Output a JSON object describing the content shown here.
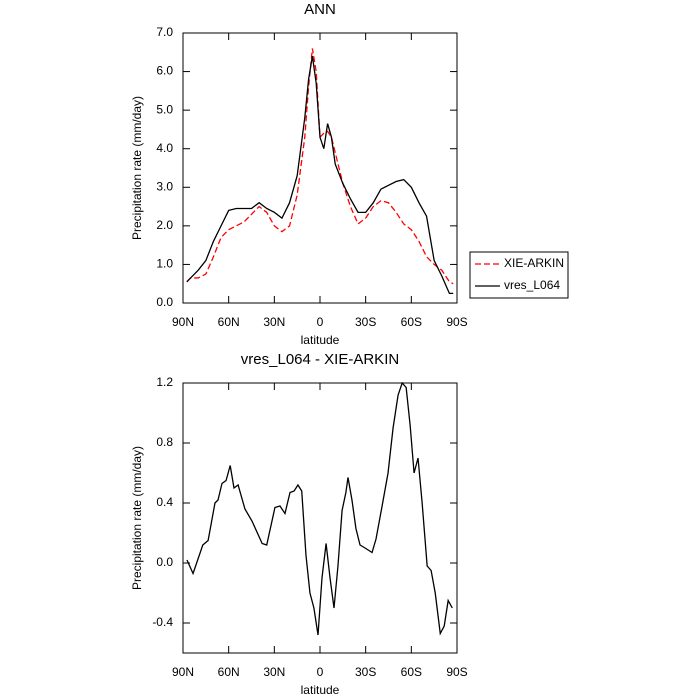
{
  "chart_data": [
    {
      "type": "line",
      "title": "ANN",
      "xlabel": "latitude",
      "ylabel": "Precipitation rate (mm/day)",
      "x": [
        87.5,
        85,
        80,
        75,
        70,
        65,
        60,
        55,
        50,
        45,
        40,
        35,
        30,
        25,
        20,
        15,
        10,
        7.5,
        5,
        2.5,
        0,
        -2.5,
        -5,
        -7.5,
        -10,
        -15,
        -20,
        -25,
        -30,
        -35,
        -40,
        -45,
        -50,
        -55,
        -60,
        -65,
        -70,
        -75,
        -80,
        -85,
        -87.5
      ],
      "series": [
        {
          "name": "XIE-ARKIN",
          "color": "#ff0000",
          "dash": "dashed",
          "values": [
            0.55,
            0.65,
            0.65,
            0.75,
            1.2,
            1.7,
            1.9,
            2.0,
            2.1,
            2.3,
            2.5,
            2.35,
            2.0,
            1.85,
            2.0,
            2.8,
            4.3,
            5.6,
            6.6,
            6.0,
            4.3,
            4.4,
            4.45,
            4.3,
            3.9,
            3.1,
            2.5,
            2.05,
            2.2,
            2.5,
            2.65,
            2.6,
            2.35,
            2.05,
            1.9,
            1.6,
            1.2,
            1.0,
            0.85,
            0.55,
            0.5
          ]
        },
        {
          "name": "vres_L064",
          "color": "#000000",
          "dash": "solid",
          "values": [
            0.55,
            0.65,
            0.85,
            1.1,
            1.6,
            2.0,
            2.4,
            2.45,
            2.45,
            2.45,
            2.6,
            2.45,
            2.35,
            2.2,
            2.6,
            3.3,
            4.8,
            5.8,
            6.4,
            5.7,
            4.3,
            4.0,
            4.65,
            4.3,
            3.6,
            3.1,
            2.7,
            2.35,
            2.35,
            2.6,
            2.95,
            3.05,
            3.15,
            3.2,
            3.0,
            2.6,
            2.25,
            1.1,
            0.7,
            0.25,
            0.25
          ]
        }
      ],
      "xlim": [
        90,
        -90
      ],
      "xticks": [
        {
          "value": 90,
          "label": "90N"
        },
        {
          "value": 60,
          "label": "60N"
        },
        {
          "value": 30,
          "label": "30N"
        },
        0,
        {
          "value": -30,
          "label": "30S"
        },
        {
          "value": -60,
          "label": "60S"
        },
        {
          "value": -90,
          "label": "90S"
        }
      ],
      "ylim": [
        0,
        7
      ],
      "yticks": [
        {
          "value": 0,
          "label": "0.0"
        },
        {
          "value": 1,
          "label": "1.0"
        },
        {
          "value": 2,
          "label": "2.0"
        },
        {
          "value": 3,
          "label": "3.0"
        },
        {
          "value": 4,
          "label": "4.0"
        },
        {
          "value": 5,
          "label": "5.0"
        },
        {
          "value": 6,
          "label": "6.0"
        },
        {
          "value": 7,
          "label": "7.0"
        }
      ],
      "legend": "outside-right"
    },
    {
      "type": "line",
      "title": "vres_L064 - XIE-ARKIN",
      "xlabel": "latitude",
      "ylabel": "Precipitation rate (mm/day)",
      "x": [
        87.4,
        83.4,
        77,
        73.5,
        69,
        67,
        64.4,
        61.7,
        59,
        56.5,
        53.8,
        49.3,
        44.7,
        38,
        35,
        29.6,
        26.3,
        23,
        19.7,
        17,
        14.5,
        12,
        9.2,
        6.6,
        4,
        1.3,
        -1.3,
        -4,
        -6.6,
        -9.2,
        -11.8,
        -14.5,
        -17,
        -18.4,
        -21,
        -23.6,
        -26.3,
        -29.6,
        -34.2,
        -36.8,
        -40.8,
        -44.7,
        -48,
        -51.3,
        -54,
        -56.6,
        -59.2,
        -61.8,
        -64.4,
        -67.1,
        -70.4,
        -73,
        -75.7,
        -79,
        -81.6,
        -84.2,
        -86.9
      ],
      "series": [
        {
          "name": "vres_L064 - XIE-ARKIN",
          "color": "#000000",
          "dash": "solid",
          "values": [
            0.02,
            -0.07,
            0.12,
            0.15,
            0.4,
            0.42,
            0.53,
            0.55,
            0.65,
            0.5,
            0.52,
            0.36,
            0.28,
            0.13,
            0.12,
            0.37,
            0.38,
            0.33,
            0.47,
            0.48,
            0.52,
            0.48,
            0.05,
            -0.2,
            -0.3,
            -0.48,
            -0.1,
            0.13,
            -0.1,
            -0.3,
            -0.02,
            0.35,
            0.47,
            0.57,
            0.42,
            0.23,
            0.12,
            0.1,
            0.07,
            0.16,
            0.38,
            0.6,
            0.9,
            1.12,
            1.2,
            1.17,
            0.92,
            0.6,
            0.7,
            0.4,
            -0.02,
            -0.05,
            -0.2,
            -0.47,
            -0.42,
            -0.25,
            -0.3
          ]
        }
      ],
      "xlim": [
        90,
        -90
      ],
      "xticks": [
        {
          "value": 90,
          "label": "90N"
        },
        {
          "value": 60,
          "label": "60N"
        },
        {
          "value": 30,
          "label": "30N"
        },
        0,
        {
          "value": -30,
          "label": "30S"
        },
        {
          "value": -60,
          "label": "60S"
        },
        {
          "value": -90,
          "label": "90S"
        }
      ],
      "ylim": [
        -0.6,
        1.2
      ],
      "yticks": [
        -0.4,
        {
          "value": 0,
          "label": "0.0"
        },
        0.4,
        0.8,
        1.2
      ]
    }
  ]
}
